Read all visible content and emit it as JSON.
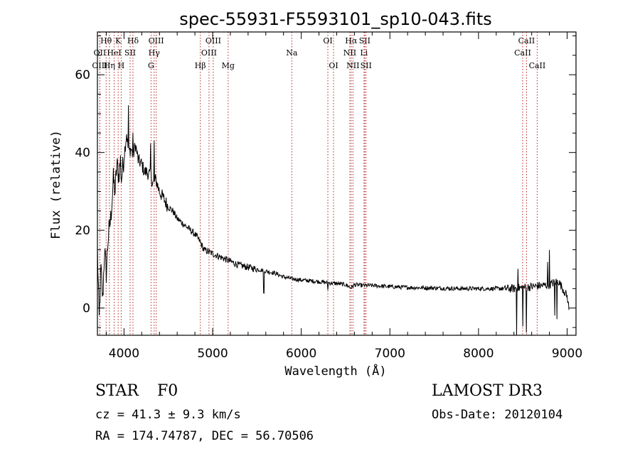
{
  "chart_data": {
    "type": "line",
    "title": "spec-55931-F5593101_sp10-043.fits",
    "xlabel": "Wavelength (Å)",
    "ylabel": "Flux (relative)",
    "xlim": [
      3700,
      9100
    ],
    "ylim": [
      -7,
      71
    ],
    "xticks": [
      4000,
      5000,
      6000,
      7000,
      8000,
      9000
    ],
    "yticks": [
      0,
      20,
      40,
      60
    ],
    "series": [
      {
        "name": "spectrum",
        "anchors": [
          [
            3700,
            15
          ],
          [
            3720,
            -3
          ],
          [
            3740,
            10
          ],
          [
            3760,
            2
          ],
          [
            3780,
            15
          ],
          [
            3800,
            9
          ],
          [
            3820,
            18
          ],
          [
            3850,
            23
          ],
          [
            3880,
            33
          ],
          [
            3900,
            30
          ],
          [
            3920,
            37
          ],
          [
            3940,
            34
          ],
          [
            3960,
            38
          ],
          [
            3970,
            33
          ],
          [
            3990,
            37
          ],
          [
            4010,
            41
          ],
          [
            4030,
            45
          ],
          [
            4050,
            40
          ],
          [
            4080,
            41
          ],
          [
            4101,
            39
          ],
          [
            4130,
            42
          ],
          [
            4160,
            38
          ],
          [
            4200,
            37
          ],
          [
            4230,
            35
          ],
          [
            4260,
            35
          ],
          [
            4300,
            34
          ],
          [
            4330,
            32
          ],
          [
            4360,
            33
          ],
          [
            4400,
            30
          ],
          [
            4450,
            28
          ],
          [
            4500,
            26
          ],
          [
            4550,
            25
          ],
          [
            4600,
            23
          ],
          [
            4700,
            21
          ],
          [
            4800,
            19
          ],
          [
            4861,
            17
          ],
          [
            4900,
            15
          ],
          [
            5000,
            14
          ],
          [
            5100,
            13
          ],
          [
            5200,
            12
          ],
          [
            5300,
            11
          ],
          [
            5400,
            10.5
          ],
          [
            5500,
            10
          ],
          [
            5600,
            9.5
          ],
          [
            5700,
            9
          ],
          [
            5800,
            8
          ],
          [
            5900,
            7.5
          ],
          [
            6000,
            7.2
          ],
          [
            6100,
            7
          ],
          [
            6200,
            6.8
          ],
          [
            6300,
            6.5
          ],
          [
            6400,
            6.3
          ],
          [
            6500,
            6
          ],
          [
            6563,
            5.2
          ],
          [
            6600,
            6
          ],
          [
            6700,
            5.8
          ],
          [
            6800,
            5.8
          ],
          [
            7000,
            5.5
          ],
          [
            7200,
            5.3
          ],
          [
            7400,
            5.2
          ],
          [
            7600,
            5.1
          ],
          [
            7800,
            5
          ],
          [
            8000,
            5
          ],
          [
            8200,
            5
          ],
          [
            8400,
            5
          ],
          [
            8600,
            5.5
          ],
          [
            8800,
            6
          ],
          [
            8900,
            7
          ],
          [
            9000,
            3
          ],
          [
            9020,
            0
          ]
        ],
        "spikes": [
          [
            4050,
            12
          ],
          [
            4101,
            6
          ],
          [
            4300,
            8
          ],
          [
            4340,
            10
          ],
          [
            5577,
            -6
          ],
          [
            6300,
            -2
          ],
          [
            8430,
            -12
          ],
          [
            8445,
            6
          ],
          [
            8500,
            -9
          ],
          [
            8540,
            -12
          ],
          [
            8780,
            5
          ],
          [
            8800,
            8
          ],
          [
            8860,
            -9
          ],
          [
            8885,
            -10
          ]
        ]
      }
    ],
    "lines": [
      {
        "label": "Hθ",
        "wave": 3798,
        "row": 1
      },
      {
        "label": "OII",
        "wave": 3727,
        "row": 2
      },
      {
        "label": "OIII",
        "wave": 3727,
        "row": 3
      },
      {
        "label": "K",
        "wave": 3934,
        "row": 1
      },
      {
        "label": "HeI",
        "wave": 3889,
        "row": 2
      },
      {
        "label": "Hη",
        "wave": 3835,
        "row": 3
      },
      {
        "label": "SII",
        "wave": 4069,
        "row": 2
      },
      {
        "label": "H",
        "wave": 3968,
        "row": 3
      },
      {
        "label": "Hδ",
        "wave": 4101,
        "row": 1
      },
      {
        "label": "OIII",
        "wave": 4363,
        "row": 1
      },
      {
        "label": "Hγ",
        "wave": 4340,
        "row": 2
      },
      {
        "label": "G",
        "wave": 4305,
        "row": 3
      },
      {
        "label": "OIII",
        "wave": 5007,
        "row": 1
      },
      {
        "label": "OIII",
        "wave": 4959,
        "row": 2
      },
      {
        "label": "Hβ",
        "wave": 4861,
        "row": 3
      },
      {
        "label": "Mg",
        "wave": 5175,
        "row": 3
      },
      {
        "label": "Na",
        "wave": 5893,
        "row": 2
      },
      {
        "label": "OI",
        "wave": 6300,
        "row": 1
      },
      {
        "label": "OI",
        "wave": 6364,
        "row": 3
      },
      {
        "label": "Hα",
        "wave": 6563,
        "row": 1
      },
      {
        "label": "SII",
        "wave": 6716,
        "row": 1
      },
      {
        "label": "NII",
        "wave": 6548,
        "row": 2
      },
      {
        "label": "Li",
        "wave": 6708,
        "row": 2
      },
      {
        "label": "NII",
        "wave": 6583,
        "row": 3
      },
      {
        "label": "SII",
        "wave": 6731,
        "row": 3
      },
      {
        "label": "CaII",
        "wave": 8542,
        "row": 1
      },
      {
        "label": "CaII",
        "wave": 8498,
        "row": 2
      },
      {
        "label": "CaII",
        "wave": 8662,
        "row": 3
      }
    ]
  },
  "info": {
    "object_class": "STAR",
    "subclass": "F0",
    "survey": "LAMOST DR3",
    "cz": "cz = 41.3 ± 9.3 km/s",
    "obs_date": "Obs-Date: 20120104",
    "radec": "RA = 174.74787, DEC =  56.70506"
  },
  "colors": {
    "axis": "#000000",
    "spectrum": "#000000",
    "line_marker": "#b22222"
  }
}
